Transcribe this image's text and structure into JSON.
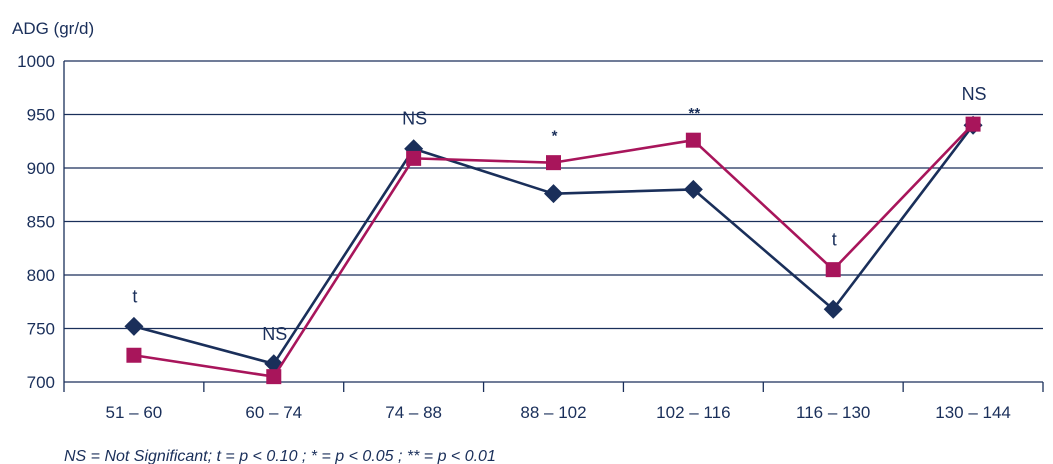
{
  "chart_data": {
    "type": "line",
    "ylabel": "ADG (gr/d)",
    "xlabel": "",
    "categories": [
      "51 – 60",
      "60 – 74",
      "74 – 88",
      "88 – 102",
      "102 – 116",
      "116 – 130",
      "130 – 144"
    ],
    "ylim": [
      700,
      1000
    ],
    "yticks": [
      "700",
      "750",
      "800",
      "850",
      "900",
      "950",
      "1000"
    ],
    "grid": true,
    "series": [
      {
        "marker": "diamond",
        "color": "#1a2f5a",
        "values": [
          752,
          717,
          918,
          876,
          880,
          768,
          940
        ]
      },
      {
        "marker": "square",
        "color": "#a8155b",
        "values": [
          725,
          705,
          909,
          905,
          926,
          805,
          941
        ]
      }
    ],
    "annotations": [
      {
        "category": "51 – 60",
        "text": "t",
        "y": 752
      },
      {
        "category": "60 – 74",
        "text": "NS",
        "y": 717
      },
      {
        "category": "74 – 88",
        "text": "NS",
        "y": 918
      },
      {
        "category": "88 – 102",
        "text": "*",
        "y": 905
      },
      {
        "category": "102 – 116",
        "text": "**",
        "y": 926
      },
      {
        "category": "116 – 130",
        "text": "t",
        "y": 805
      },
      {
        "category": "130 – 144",
        "text": "NS",
        "y": 941
      }
    ],
    "footnote": "NS = Not Significant; t = p < 0.10 ; * = p < 0.05 ; ** = p < 0.01"
  }
}
